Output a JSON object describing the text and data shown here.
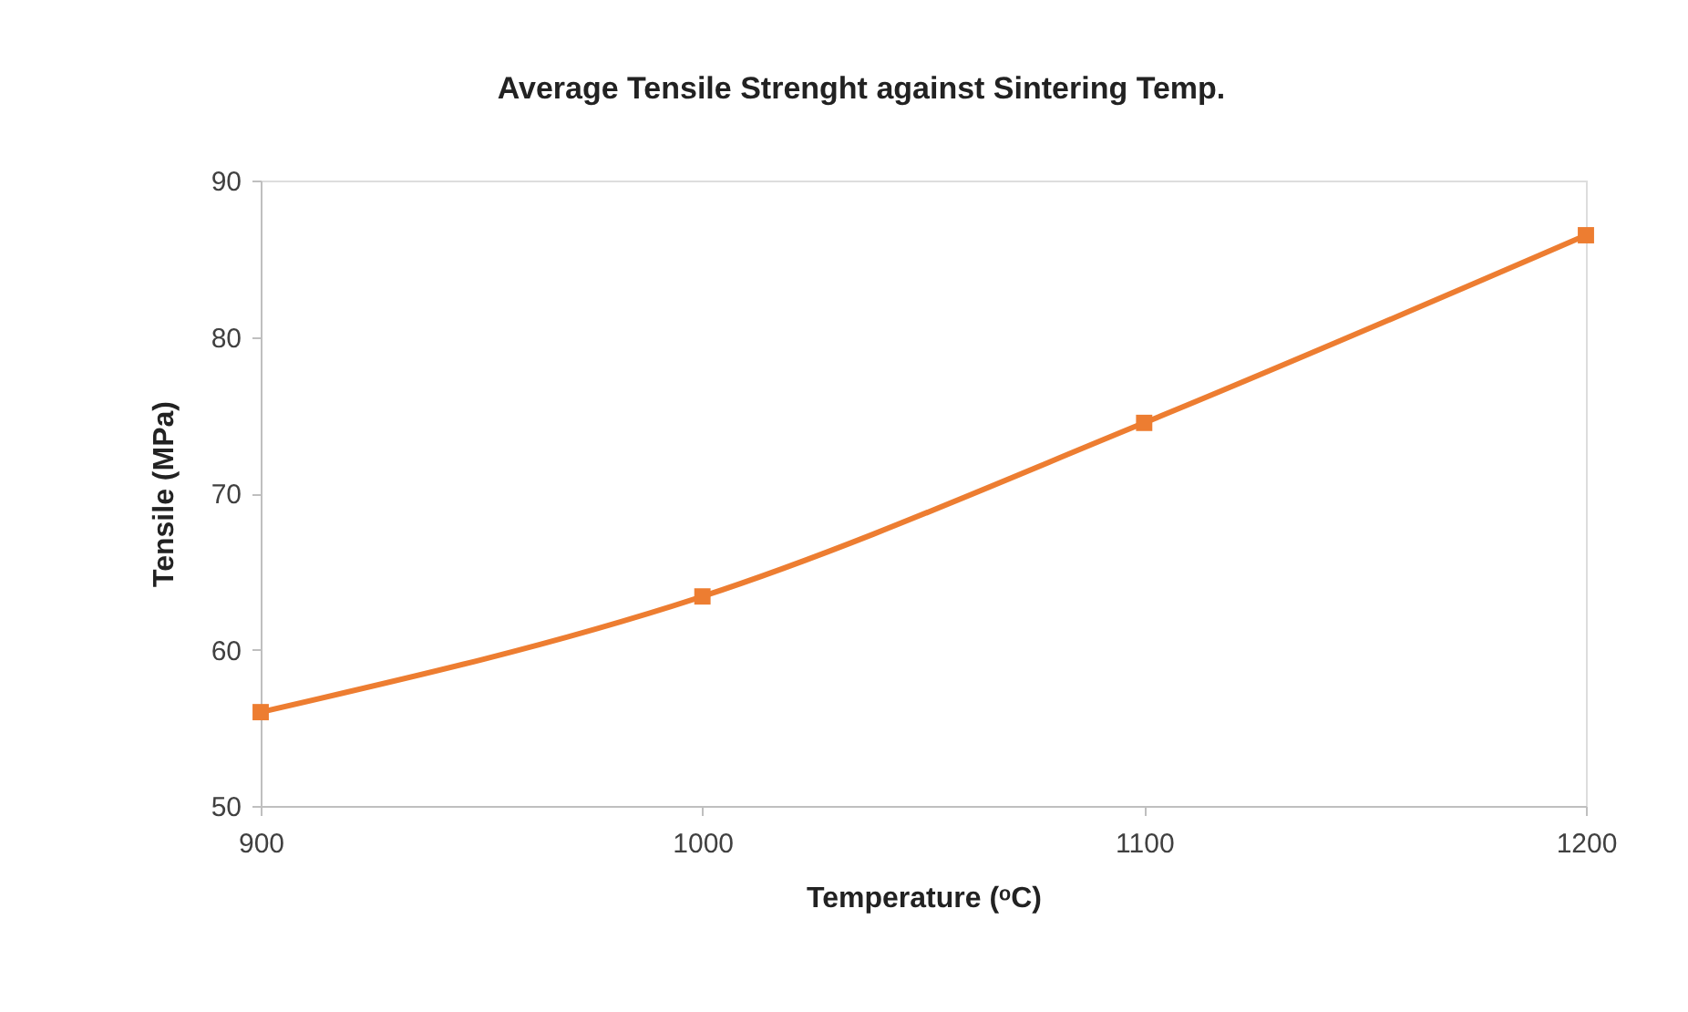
{
  "chart_data": {
    "type": "line",
    "title": "Average Tensile Strenght against Sintering Temp.",
    "xlabel": "Temperature (ᵒC)",
    "ylabel": "Tensile (MPa)",
    "x": [
      900,
      1000,
      1100,
      1200
    ],
    "series": [
      {
        "color": "#ed7d31",
        "values": [
          56,
          63.4,
          74.5,
          86.5
        ]
      }
    ],
    "xlim": [
      900,
      1200
    ],
    "xticks": [
      900,
      1000,
      1100,
      1200
    ],
    "ylim": [
      50,
      90
    ],
    "yticks": [
      50,
      60,
      70,
      80,
      90
    ],
    "grid": false,
    "marker": "square",
    "line_style": "solid"
  }
}
